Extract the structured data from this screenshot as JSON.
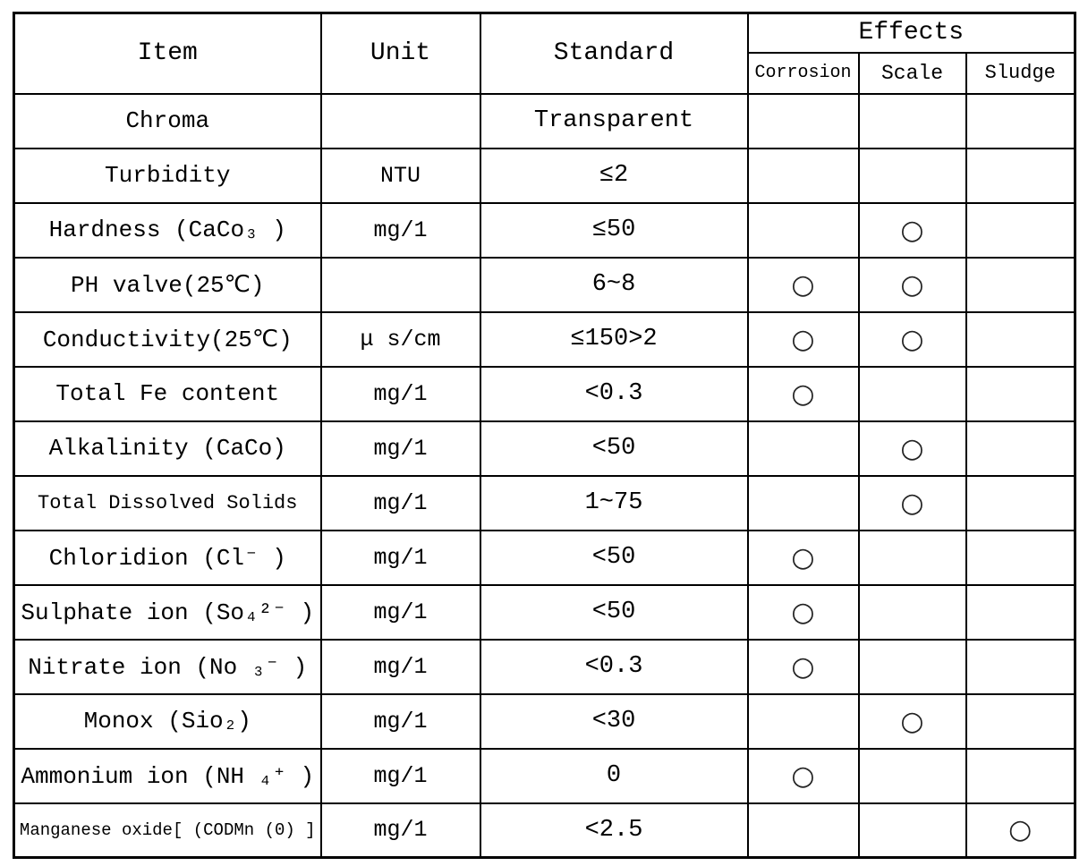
{
  "table": {
    "headers": {
      "item": "Item",
      "unit": "Unit",
      "standard": "Standard",
      "effects": "Effects",
      "corrosion": "Corrosion",
      "scale": "Scale",
      "sludge": "Sludge"
    },
    "rows": [
      {
        "item": "Chroma",
        "unit": "",
        "standard": "Transparent",
        "corrosion": "",
        "scale": "",
        "sludge": ""
      },
      {
        "item": "Turbidity",
        "unit": "NTU",
        "standard": "≤2",
        "corrosion": "",
        "scale": "",
        "sludge": ""
      },
      {
        "item": "Hardness (CaCo₃ )",
        "unit": "mg/1",
        "standard": "≤50",
        "corrosion": "",
        "scale": "○",
        "sludge": ""
      },
      {
        "item": "PH valve(25℃)",
        "unit": "",
        "standard": "6~8",
        "corrosion": "○",
        "scale": "○",
        "sludge": ""
      },
      {
        "item": "Conductivity(25℃)",
        "unit": "μ s/cm",
        "standard": "≤150>2",
        "corrosion": "○",
        "scale": "○",
        "sludge": ""
      },
      {
        "item": "Total Fe content",
        "unit": "mg/1",
        "standard": "<0.3",
        "corrosion": "○",
        "scale": "",
        "sludge": ""
      },
      {
        "item": "Alkalinity (CaCo)",
        "unit": "mg/1",
        "standard": "<50",
        "corrosion": "",
        "scale": "○",
        "sludge": ""
      },
      {
        "item": "Total Dissolved Solids",
        "unit": "mg/1",
        "standard": "1~75",
        "corrosion": "",
        "scale": "○",
        "sludge": ""
      },
      {
        "item": "Chloridion (Cl⁻ )",
        "unit": "mg/1",
        "standard": "<50",
        "corrosion": "○",
        "scale": "",
        "sludge": ""
      },
      {
        "item": "Sulphate ion (So₄²⁻ )",
        "unit": "mg/1",
        "standard": "<50",
        "corrosion": "○",
        "scale": "",
        "sludge": ""
      },
      {
        "item": "Nitrate ion (No ₃⁻ )",
        "unit": "mg/1",
        "standard": "<0.3",
        "corrosion": "○",
        "scale": "",
        "sludge": ""
      },
      {
        "item": "Monox (Sio₂)",
        "unit": "mg/1",
        "standard": "<30",
        "corrosion": "",
        "scale": "○",
        "sludge": ""
      },
      {
        "item": "Ammonium ion (NH ₄⁺ )",
        "unit": "mg/1",
        "standard": "0",
        "corrosion": "○",
        "scale": "",
        "sludge": ""
      },
      {
        "item": "Manganese oxide[ (CODMn (0) ]",
        "unit": "mg/1",
        "standard": "<2.5",
        "corrosion": "",
        "scale": "",
        "sludge": "○"
      }
    ]
  }
}
